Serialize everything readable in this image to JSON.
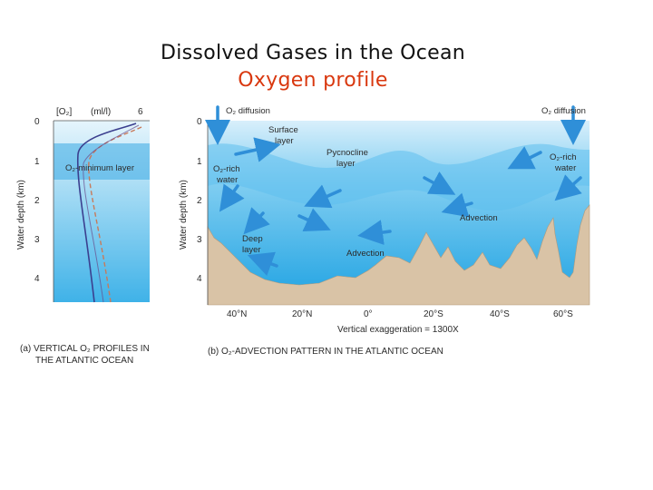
{
  "slide": {
    "title": "Dissolved Gases in the Ocean",
    "subtitle": "Oxygen profile"
  },
  "panel_a": {
    "header_var": "[O₂]",
    "header_unit": "(ml/l)",
    "header_max": "6",
    "y_axis_label": "Water depth (km)",
    "depth_ticks": [
      "0",
      "1",
      "2",
      "3",
      "4"
    ],
    "min_layer_label": "O₂-minimum layer",
    "caption_line1": "(a)  VERTICAL O₂ PROFILES IN",
    "caption_line2": "THE ATLANTIC OCEAN"
  },
  "panel_b": {
    "y_axis_label": "Water depth (km)",
    "depth_ticks": [
      "0",
      "1",
      "2",
      "3",
      "4"
    ],
    "labels": {
      "diffusion_left": "O₂ diffusion",
      "diffusion_right": "O₂ diffusion",
      "surface_1": "Surface",
      "surface_2": "layer",
      "pycnocline_1": "Pycnocline",
      "pycnocline_2": "layer",
      "o2_rich_left_1": "O₂-rich",
      "o2_rich_left_2": "water",
      "o2_rich_right_1": "O₂-rich",
      "o2_rich_right_2": "water",
      "advection_1": "Advection",
      "deep_1": "Deep",
      "deep_2": "layer",
      "advection_2": "Advection"
    },
    "latitude_ticks": [
      "40°N",
      "20°N",
      "0°",
      "20°S",
      "40°S",
      "60°S"
    ],
    "exaggeration": "Vertical exaggeration = 1300X",
    "caption": "(b)  O₂-ADVECTION PATTERN IN THE ATLANTIC OCEAN"
  },
  "colors": {
    "title": "#111111",
    "subtitle": "#d9380f",
    "ocean_light": "#d6eefb",
    "ocean_deep": "#29a8e4",
    "seafloor": "#d9c3a6",
    "arrow": "#2f8fd8",
    "profile_1": "#3b3f8f",
    "profile_2": "#c87a5a"
  }
}
